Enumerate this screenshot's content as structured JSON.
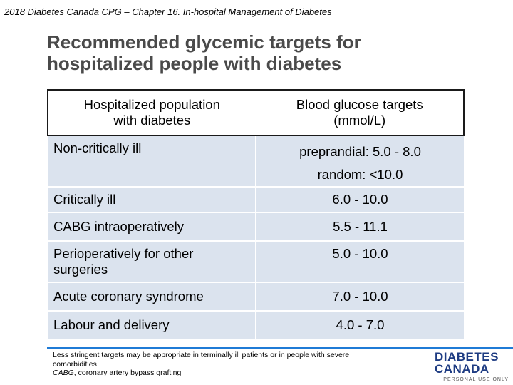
{
  "header": {
    "citation": "2018 Diabetes Canada CPG – Chapter 16. In-hospital Management of Diabetes"
  },
  "slide": {
    "title_line1": "Recommended glycemic targets for",
    "title_line2": "hospitalized people with diabetes"
  },
  "table": {
    "headers": {
      "population_line1": "Hospitalized population",
      "population_line2": "with diabetes",
      "targets_line1": "Blood glucose targets",
      "targets_line2": "(mmol/L)"
    },
    "rows": [
      {
        "population": "Non-critically ill",
        "target_line1": "preprandial:  5.0 - 8.0",
        "target_line2": "random:  <10.0"
      },
      {
        "population": "Critically ill",
        "target": "6.0 - 10.0"
      },
      {
        "population": "CABG intraoperatively",
        "target": "5.5 - 11.1"
      },
      {
        "population_line1": "Perioperatively for other",
        "population_line2": "surgeries",
        "target": "5.0 - 10.0"
      },
      {
        "population": "Acute coronary syndrome",
        "target": "7.0 - 10.0"
      },
      {
        "population": "Labour and delivery",
        "target": "4.0 - 7.0"
      }
    ]
  },
  "footnote": {
    "line1": "Less stringent targets may be appropriate in terminally ill patients or in people with severe",
    "line2": "comorbidities",
    "abbrev_term": "CABG",
    "abbrev_def": ", coronary artery bypass grafting"
  },
  "logo": {
    "line1": "DIABETES",
    "line2": "CANADA",
    "sub": "PERSONAL USE ONLY",
    "color": "#1d3b82"
  },
  "colors": {
    "row_fill": "#dbe3ee",
    "title": "#4a4a4a",
    "accent_bar": "#1f7bd6"
  }
}
